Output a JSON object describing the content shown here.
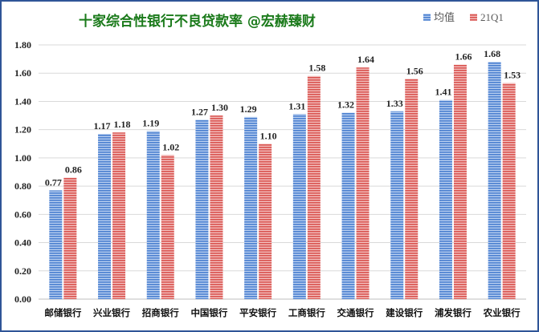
{
  "chart_data": {
    "type": "bar",
    "title": "十家综合性银行不良贷款率   @宏赫臻财",
    "categories": [
      "邮储银行",
      "兴业银行",
      "招商银行",
      "中国银行",
      "平安银行",
      "工商银行",
      "交通银行",
      "建设银行",
      "浦发银行",
      "农业银行"
    ],
    "series": [
      {
        "name": "均值",
        "color": "#5b8fd6",
        "values": [
          0.77,
          1.17,
          1.19,
          1.27,
          1.29,
          1.31,
          1.32,
          1.33,
          1.41,
          1.68
        ]
      },
      {
        "name": "21Q1",
        "color": "#e06666",
        "values": [
          0.86,
          1.18,
          1.02,
          1.3,
          1.1,
          1.58,
          1.64,
          1.56,
          1.66,
          1.53
        ]
      }
    ],
    "ylim": [
      0,
      1.8
    ],
    "yticks": [
      "0.00",
      "0.20",
      "0.40",
      "0.60",
      "0.80",
      "1.00",
      "1.20",
      "1.40",
      "1.60",
      "1.80"
    ],
    "grid": true,
    "legend": "top-right"
  }
}
